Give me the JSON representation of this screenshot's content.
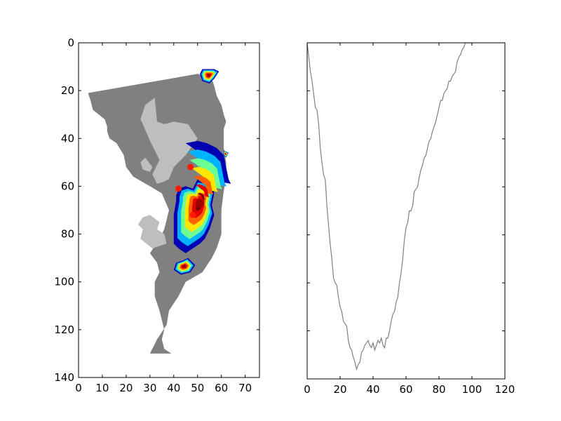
{
  "chart_data": [
    {
      "type": "heatmap",
      "title": "",
      "xlabel": "",
      "ylabel": "",
      "xlim": [
        0,
        76
      ],
      "ylim": [
        140,
        0
      ],
      "y_inverted": true,
      "x_ticks": [
        "0",
        "10",
        "20",
        "30",
        "40",
        "50",
        "60",
        "70"
      ],
      "y_ticks": [
        "0",
        "20",
        "40",
        "60",
        "80",
        "100",
        "120",
        "140"
      ],
      "colormap": "jet",
      "colors": {
        "land": "#808080",
        "interior": "#bebebe",
        "frame": "#000000"
      },
      "land_outline": {
        "left_edge": [
          [
            21,
            4
          ],
          [
            24,
            5
          ],
          [
            28,
            6
          ],
          [
            32,
            11
          ],
          [
            35,
            12
          ],
          [
            37,
            12
          ],
          [
            40,
            13
          ],
          [
            42,
            16
          ],
          [
            47,
            19
          ],
          [
            52,
            20
          ],
          [
            56,
            23
          ],
          [
            60,
            30
          ],
          [
            63,
            35
          ],
          [
            70,
            38
          ],
          [
            78,
            36
          ],
          [
            82,
            34
          ],
          [
            88,
            30
          ],
          [
            92,
            33
          ],
          [
            96,
            34
          ],
          [
            100,
            32
          ],
          [
            106,
            32
          ],
          [
            112,
            34
          ],
          [
            116,
            35
          ],
          [
            120,
            36
          ],
          [
            124,
            35
          ],
          [
            128,
            36
          ],
          [
            130,
            39
          ]
        ],
        "right_edge": [
          [
            13,
            50
          ],
          [
            15,
            56
          ],
          [
            18,
            57
          ],
          [
            22,
            58
          ],
          [
            26,
            60
          ],
          [
            30,
            61
          ],
          [
            33,
            62
          ],
          [
            36,
            61
          ],
          [
            40,
            61
          ],
          [
            44,
            61
          ],
          [
            50,
            62
          ],
          [
            56,
            62
          ],
          [
            62,
            61
          ],
          [
            70,
            60
          ],
          [
            80,
            60
          ],
          [
            86,
            58
          ],
          [
            90,
            56
          ],
          [
            96,
            52
          ],
          [
            100,
            45
          ],
          [
            106,
            42
          ],
          [
            112,
            38
          ],
          [
            118,
            37
          ],
          [
            124,
            33
          ],
          [
            128,
            31
          ],
          [
            130,
            30
          ]
        ]
      },
      "interior_region": {
        "outline": [
          [
            32,
            23
          ],
          [
            28,
            26
          ],
          [
            26,
            32
          ],
          [
            27,
            34
          ],
          [
            30,
            41
          ],
          [
            34,
            49
          ],
          [
            31,
            55
          ],
          [
            33,
            59
          ],
          [
            36,
            58
          ],
          [
            38,
            57
          ],
          [
            40,
            52
          ],
          [
            45,
            47
          ],
          [
            50,
            40
          ],
          [
            46,
            34
          ],
          [
            40,
            33
          ],
          [
            36,
            34
          ],
          [
            33,
            33
          ]
        ]
      },
      "secondary_patches": [
        {
          "outline": [
            [
              72,
              30
            ],
            [
              75,
              34
            ],
            [
              78,
              33
            ],
            [
              80,
              36
            ],
            [
              84,
              37
            ],
            [
              86,
              31
            ],
            [
              82,
              26
            ],
            [
              78,
              27
            ],
            [
              76,
              25
            ],
            [
              73,
              27
            ]
          ]
        },
        {
          "outline": [
            [
              48,
              28
            ],
            [
              52,
              31
            ],
            [
              54,
              30
            ],
            [
              53,
              27
            ],
            [
              50,
              26
            ]
          ]
        }
      ],
      "hotspot_region": {
        "outline": [
          [
            42,
            45
          ],
          [
            41,
            50
          ],
          [
            42,
            54
          ],
          [
            44,
            58
          ],
          [
            47,
            61
          ],
          [
            52,
            62
          ],
          [
            57,
            63
          ],
          [
            59,
            64
          ],
          [
            58,
            59
          ],
          [
            55,
            57
          ],
          [
            58,
            55
          ],
          [
            57,
            50
          ],
          [
            61,
            48
          ],
          [
            60,
            45
          ],
          [
            61,
            42
          ],
          [
            64,
            41
          ],
          [
            66,
            41
          ],
          [
            72,
            40
          ],
          [
            75,
            40
          ],
          [
            80,
            40
          ],
          [
            84,
            40
          ],
          [
            86,
            42
          ],
          [
            88,
            45
          ],
          [
            86,
            48
          ],
          [
            84,
            51
          ],
          [
            82,
            53
          ],
          [
            78,
            55
          ],
          [
            72,
            57
          ],
          [
            68,
            56
          ],
          [
            63,
            57
          ],
          [
            58,
            56
          ],
          [
            54,
            58
          ],
          [
            50,
            56
          ],
          [
            47,
            52
          ],
          [
            44,
            48
          ]
        ],
        "peak": [
          67,
          51
        ],
        "secondary_peaks": [
          [
            72,
            48
          ],
          [
            52,
            47
          ],
          [
            61,
            42
          ]
        ]
      },
      "small_hotspots": [
        {
          "outline": [
            [
              91,
              44
            ],
            [
              90,
              46
            ],
            [
              93,
              49
            ],
            [
              96,
              47
            ],
            [
              97,
              43
            ],
            [
              95,
              40
            ],
            [
              92,
              41
            ]
          ]
        },
        {
          "outline": [
            [
              11,
              57
            ],
            [
              12,
              59
            ],
            [
              15,
              57
            ],
            [
              17,
              55
            ],
            [
              16,
              52
            ],
            [
              13,
              51
            ],
            [
              11,
              52
            ]
          ]
        },
        {
          "outline": [
            [
              45,
              61
            ],
            [
              47,
              61
            ],
            [
              48,
              62
            ],
            [
              46,
              63
            ]
          ]
        }
      ]
    },
    {
      "type": "line",
      "title": "",
      "xlabel": "",
      "ylabel": "",
      "xlim": [
        0,
        120
      ],
      "ylim": [
        140,
        0
      ],
      "x_ticks": [
        "0",
        "20",
        "40",
        "60",
        "80",
        "100",
        "120"
      ],
      "y_ticks_labeled": false,
      "line_color": "#808080",
      "series": [
        {
          "x": [
            0,
            1,
            2,
            3,
            5,
            6,
            7,
            8,
            9,
            10,
            11,
            12,
            13,
            14,
            15,
            16,
            17,
            18,
            19,
            20,
            21,
            22,
            23,
            24,
            25,
            26,
            27,
            28,
            29,
            30,
            31,
            32,
            33,
            34,
            35,
            36,
            37,
            38,
            39,
            40,
            41,
            42,
            43,
            44,
            45,
            46,
            47,
            48,
            49,
            50,
            51,
            52,
            53,
            54,
            55,
            56,
            57,
            58,
            59,
            60,
            61,
            62,
            63,
            64,
            65,
            66,
            67,
            68,
            69,
            70,
            71,
            72,
            73,
            74,
            75,
            76,
            77,
            78,
            79,
            80,
            81,
            82,
            83,
            84,
            85,
            86,
            87,
            88,
            89,
            90,
            91,
            92,
            93,
            94,
            95,
            96,
            97,
            98,
            99,
            100,
            101,
            102
          ],
          "y": [
            0,
            6,
            12,
            16,
            27,
            28,
            34,
            44,
            50,
            55,
            57,
            68,
            76,
            84,
            90,
            98,
            100,
            101,
            106,
            110,
            112,
            116,
            117,
            118,
            124,
            127,
            128,
            131,
            133,
            136,
            134,
            133,
            129,
            128,
            126,
            125,
            124,
            126,
            127,
            125,
            128,
            126,
            124,
            125,
            123,
            126,
            127,
            123,
            123,
            120,
            116,
            113,
            112,
            108,
            106,
            100,
            96,
            90,
            82,
            77,
            75,
            70,
            70,
            68,
            62,
            61,
            60,
            56,
            53,
            51,
            48,
            47,
            44,
            41,
            40,
            37,
            35,
            33,
            30,
            27,
            24,
            24,
            21,
            20,
            19,
            16,
            16,
            14,
            13,
            12,
            8,
            6,
            5,
            3,
            2,
            0,
            0,
            0,
            0,
            0,
            0,
            0
          ]
        }
      ]
    }
  ]
}
